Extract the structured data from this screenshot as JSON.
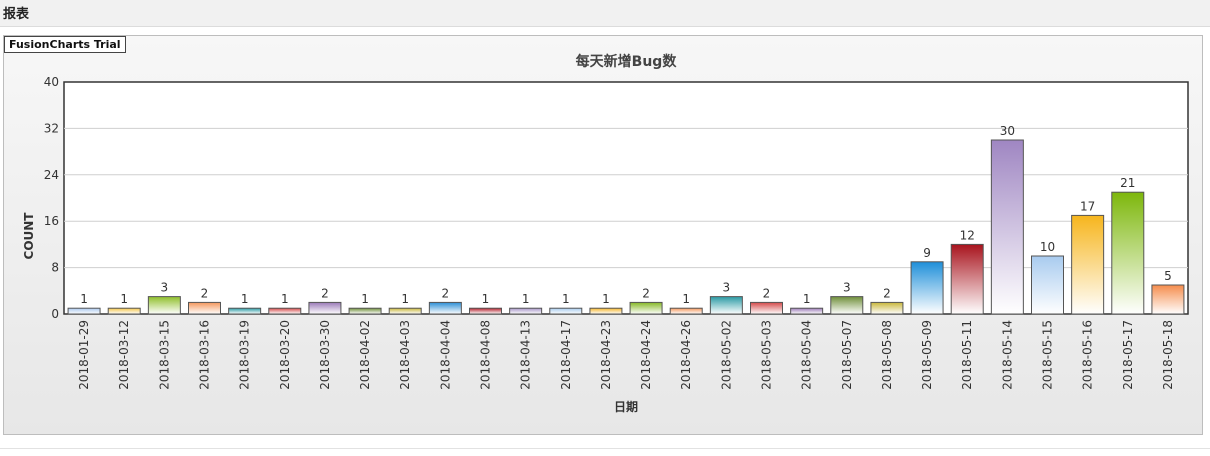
{
  "page": {
    "title": "报表",
    "trial_label": "FusionCharts Trial"
  },
  "chart_data": {
    "type": "bar",
    "title": "每天新增Bug数",
    "xlabel": "日期",
    "ylabel": "COUNT",
    "ylim": [
      0,
      40
    ],
    "yticks": [
      "0",
      "8",
      "16",
      "24",
      "32",
      "40"
    ],
    "grid": true,
    "categories": [
      "2018-01-29",
      "2018-03-12",
      "2018-03-15",
      "2018-03-16",
      "2018-03-19",
      "2018-03-20",
      "2018-03-30",
      "2018-04-02",
      "2018-04-03",
      "2018-04-04",
      "2018-04-08",
      "2018-04-13",
      "2018-04-17",
      "2018-04-23",
      "2018-04-24",
      "2018-04-26",
      "2018-05-02",
      "2018-05-03",
      "2018-05-04",
      "2018-05-07",
      "2018-05-08",
      "2018-05-09",
      "2018-05-11",
      "2018-05-14",
      "2018-05-15",
      "2018-05-16",
      "2018-05-17",
      "2018-05-18"
    ],
    "values": [
      1,
      1,
      3,
      2,
      1,
      1,
      2,
      1,
      1,
      2,
      1,
      1,
      1,
      1,
      2,
      1,
      3,
      2,
      1,
      3,
      2,
      9,
      12,
      30,
      10,
      17,
      21,
      5
    ],
    "colors": [
      "#aac8ee",
      "#f3c54a",
      "#8fbf2a",
      "#f4975c",
      "#2a9aa4",
      "#d44a4a",
      "#9b7ab8",
      "#6f8f3a",
      "#c8b63a",
      "#2d8fd6",
      "#b3202c",
      "#a895c8",
      "#a8cbef",
      "#f5b52a",
      "#86b826",
      "#f4975c",
      "#2a9aa4",
      "#d44a4a",
      "#9b7ab8",
      "#6f8f3a",
      "#c8b63a",
      "#1e8fd9",
      "#a8131d",
      "#9f86c2",
      "#a8cbef",
      "#f6b51d",
      "#7db70b",
      "#f58c4c"
    ]
  }
}
